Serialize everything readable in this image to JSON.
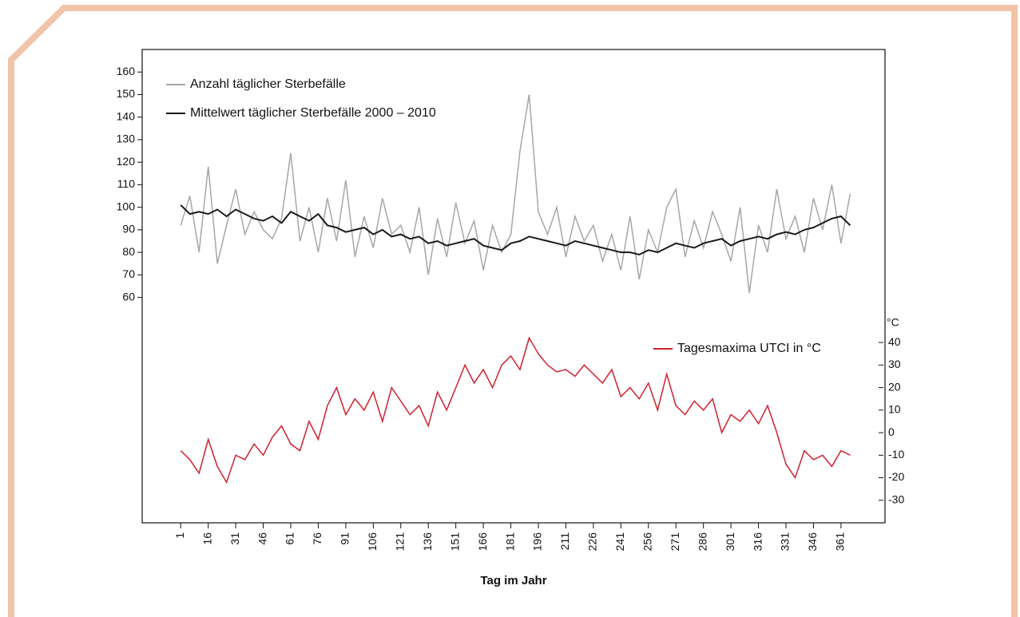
{
  "chart_data": {
    "type": "line",
    "x_label": "Tag im Jahr",
    "y2_unit": "°C",
    "x": [
      1,
      6,
      11,
      16,
      21,
      26,
      31,
      36,
      41,
      46,
      51,
      56,
      61,
      66,
      71,
      76,
      81,
      86,
      91,
      96,
      101,
      106,
      111,
      116,
      121,
      126,
      131,
      136,
      141,
      146,
      151,
      156,
      161,
      166,
      171,
      176,
      181,
      186,
      191,
      196,
      201,
      206,
      211,
      216,
      221,
      226,
      231,
      236,
      241,
      246,
      251,
      256,
      261,
      266,
      271,
      276,
      281,
      286,
      291,
      296,
      301,
      306,
      311,
      316,
      321,
      326,
      331,
      336,
      341,
      346,
      351,
      356,
      361,
      366
    ],
    "series": [
      {
        "name": "Anzahl täglicher Sterbefälle",
        "color": "#a6a6a6",
        "values": [
          92,
          105,
          80,
          118,
          75,
          92,
          108,
          88,
          98,
          90,
          86,
          95,
          124,
          85,
          100,
          80,
          104,
          85,
          112,
          78,
          96,
          82,
          104,
          88,
          92,
          80,
          100,
          70,
          95,
          78,
          102,
          84,
          94,
          72,
          92,
          80,
          88,
          125,
          150,
          98,
          88,
          100,
          78,
          96,
          85,
          92,
          76,
          88,
          72,
          96,
          68,
          90,
          80,
          100,
          108,
          78,
          94,
          82,
          98,
          88,
          76,
          100,
          62,
          92,
          80,
          108,
          86,
          96,
          80,
          104,
          90,
          110,
          84,
          106
        ]
      },
      {
        "name": "Mittelwert täglicher Sterbefälle 2000 – 2010",
        "color": "#1a1a1a",
        "values": [
          101,
          97,
          98,
          97,
          99,
          96,
          99,
          97,
          95,
          94,
          96,
          93,
          98,
          96,
          94,
          97,
          92,
          91,
          89,
          90,
          91,
          88,
          90,
          87,
          88,
          86,
          87,
          84,
          85,
          83,
          84,
          85,
          86,
          83,
          82,
          81,
          84,
          85,
          87,
          86,
          85,
          84,
          83,
          85,
          84,
          83,
          82,
          81,
          80,
          80,
          79,
          81,
          80,
          82,
          84,
          83,
          82,
          84,
          85,
          86,
          83,
          85,
          86,
          87,
          86,
          88,
          89,
          88,
          90,
          91,
          93,
          95,
          96,
          92
        ]
      },
      {
        "name": "Tagesmaxima UTCI in °C",
        "color": "#d0202e",
        "axis": "y2",
        "values": [
          -8,
          -12,
          -18,
          -3,
          -15,
          -22,
          -10,
          -12,
          -5,
          -10,
          -2,
          3,
          -5,
          -8,
          5,
          -3,
          12,
          20,
          8,
          15,
          10,
          18,
          5,
          20,
          14,
          8,
          12,
          3,
          18,
          10,
          20,
          30,
          22,
          28,
          20,
          30,
          34,
          28,
          42,
          35,
          30,
          27,
          28,
          25,
          30,
          26,
          22,
          28,
          16,
          20,
          15,
          22,
          10,
          26,
          12,
          8,
          14,
          10,
          15,
          0,
          8,
          5,
          10,
          4,
          12,
          0,
          -14,
          -20,
          -8,
          -12,
          -10,
          -15,
          -8,
          -10
        ]
      }
    ],
    "xlim": [
      -20,
      385
    ],
    "xticks": [
      1,
      16,
      31,
      46,
      61,
      76,
      91,
      106,
      121,
      136,
      151,
      166,
      181,
      196,
      211,
      226,
      241,
      256,
      271,
      286,
      301,
      316,
      331,
      346,
      361
    ],
    "ylim": [
      -40,
      170
    ],
    "yticks": [
      60,
      70,
      80,
      90,
      100,
      110,
      120,
      130,
      140,
      150,
      160
    ],
    "y2lim": [
      -40,
      170
    ],
    "y2ticks": [
      -30,
      -20,
      -10,
      0,
      10,
      20,
      30,
      40
    ]
  }
}
